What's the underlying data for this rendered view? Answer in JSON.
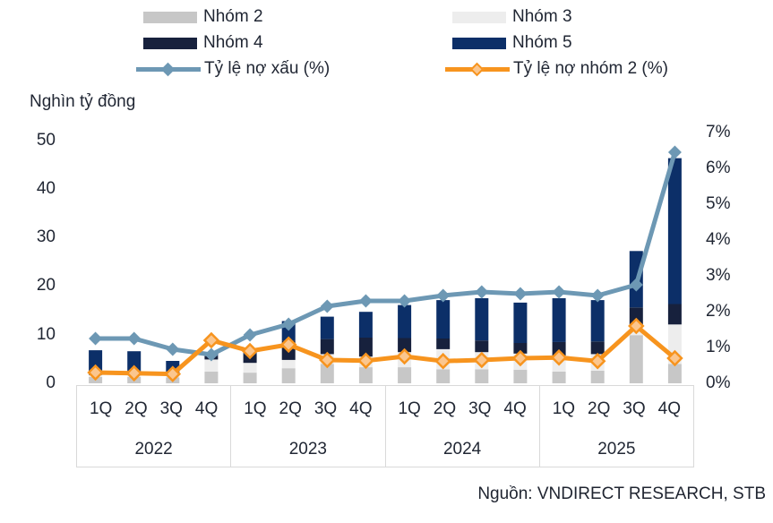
{
  "axis_left_title": "Nghìn tỷ đồng",
  "source": "Nguồn: VNDIRECT RESEARCH, STB",
  "colors": {
    "nhom2": "#c7c7c7",
    "nhom3": "#ededed",
    "nhom4": "#17213d",
    "nhom5": "#0c2f68",
    "npl_line": "#6d98b4",
    "group2_line": "#f7941e",
    "group2_marker_fill": "#fbc68e",
    "axis_border": "#d9d9d9",
    "text": "#212734"
  },
  "chart_data": {
    "type": "bar",
    "subtype": "stacked-bar-with-lines",
    "stacked": true,
    "grid": false,
    "legend_position": "top",
    "quarters": [
      "1Q",
      "2Q",
      "3Q",
      "4Q"
    ],
    "years": [
      "2022",
      "2023",
      "2024",
      "2025"
    ],
    "categories": [
      "1Q 2022",
      "2Q 2022",
      "3Q 2022",
      "4Q 2022",
      "1Q 2023",
      "2Q 2023",
      "3Q 2023",
      "4Q 2023",
      "1Q 2024",
      "2Q 2024",
      "3Q 2024",
      "4Q 2024",
      "1Q 2025",
      "2Q 2025",
      "3Q 2025",
      "4Q 2025"
    ],
    "left_axis": {
      "title": "Nghìn tỷ đồng",
      "ticks": [
        0,
        10,
        20,
        30,
        40,
        50
      ],
      "range": [
        0,
        50
      ],
      "unit": "nghìn tỷ đồng"
    },
    "right_axis": {
      "tick_labels": [
        "0%",
        "1%",
        "2%",
        "3%",
        "4%",
        "5%",
        "6%",
        "7%"
      ],
      "range": [
        0,
        7
      ],
      "unit": "%"
    },
    "series": [
      {
        "name": "Nhóm 2",
        "type": "bar",
        "axis": "left",
        "color": "#c7c7c7",
        "values": [
          1.3,
          1.3,
          1.2,
          2.4,
          2.2,
          3.1,
          4.0,
          3.3,
          3.3,
          2.9,
          2.9,
          2.8,
          2.4,
          2.6,
          9.9,
          4.0
        ]
      },
      {
        "name": "Nhóm 3",
        "type": "bar",
        "axis": "left",
        "color": "#ededed",
        "values": [
          0.4,
          0.4,
          0.4,
          2.5,
          2.0,
          1.7,
          2.0,
          2.2,
          3.1,
          4.1,
          3.5,
          3.3,
          3.3,
          3.4,
          1.7,
          8.1
        ]
      },
      {
        "name": "Nhóm 4",
        "type": "bar",
        "axis": "left",
        "color": "#17213d",
        "values": [
          1.0,
          0.9,
          0.8,
          0.7,
          1.7,
          4.0,
          3.1,
          3.9,
          2.9,
          2.2,
          2.4,
          2.2,
          2.8,
          2.6,
          4.0,
          4.2
        ]
      },
      {
        "name": "Nhóm 5",
        "type": "bar",
        "axis": "left",
        "color": "#0c2f68",
        "values": [
          4.1,
          4.0,
          2.2,
          0.8,
          1.1,
          4.0,
          4.6,
          5.3,
          6.8,
          7.9,
          8.7,
          8.3,
          9.0,
          8.5,
          11.6,
          30.0
        ]
      },
      {
        "name": "Tỷ lệ nợ xấu (%)",
        "type": "line",
        "axis": "right",
        "color": "#6d98b4",
        "marker": "diamond",
        "values": [
          1.25,
          1.25,
          0.95,
          0.8,
          1.35,
          1.65,
          2.15,
          2.3,
          2.3,
          2.45,
          2.55,
          2.5,
          2.55,
          2.45,
          2.75,
          6.45
        ]
      },
      {
        "name": "Tỷ lệ nợ nhóm 2 (%)",
        "type": "line",
        "axis": "right",
        "color": "#f7941e",
        "marker": "diamond",
        "marker_fill": "#fbc68e",
        "values": [
          0.3,
          0.28,
          0.26,
          1.2,
          0.9,
          1.08,
          0.65,
          0.63,
          0.75,
          0.62,
          0.65,
          0.7,
          0.72,
          0.62,
          1.6,
          0.7
        ]
      }
    ]
  }
}
